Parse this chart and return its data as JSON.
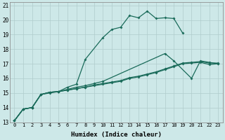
{
  "xlabel": "Humidex (Indice chaleur)",
  "bg_color": "#cde8e8",
  "grid_color": "#b0cccc",
  "line_color": "#1a6b5a",
  "xlim_min": -0.5,
  "xlim_max": 23.5,
  "ylim_min": 13,
  "ylim_max": 21.2,
  "xticks": [
    0,
    1,
    2,
    3,
    4,
    5,
    6,
    7,
    8,
    9,
    10,
    11,
    12,
    13,
    14,
    15,
    16,
    17,
    18,
    19,
    20,
    21,
    22,
    23
  ],
  "yticks": [
    13,
    14,
    15,
    16,
    17,
    18,
    19,
    20,
    21
  ],
  "series": [
    {
      "x": [
        0,
        1,
        2,
        3,
        4,
        5,
        6,
        7,
        8,
        10,
        11,
        12,
        13,
        14,
        15,
        16,
        17,
        18,
        19
      ],
      "y": [
        13.1,
        13.9,
        14.0,
        14.9,
        15.0,
        15.1,
        15.4,
        15.6,
        17.3,
        18.8,
        19.35,
        19.5,
        20.3,
        20.15,
        20.6,
        20.1,
        20.15,
        20.1,
        19.1
      ]
    },
    {
      "x": [
        0,
        1,
        2,
        3,
        4,
        5,
        6,
        7,
        8,
        9,
        10,
        17,
        18,
        20,
        21,
        22,
        23
      ],
      "y": [
        13.1,
        13.9,
        14.0,
        14.9,
        15.05,
        15.1,
        15.25,
        15.4,
        15.5,
        15.65,
        15.8,
        17.7,
        17.2,
        16.0,
        17.2,
        17.1,
        17.0
      ]
    },
    {
      "x": [
        0,
        1,
        2,
        3,
        4,
        5,
        6,
        7,
        8,
        9,
        10,
        11,
        12,
        13,
        14,
        15,
        16,
        17,
        18,
        19,
        20,
        21,
        22,
        23
      ],
      "y": [
        13.1,
        13.9,
        14.0,
        14.9,
        15.05,
        15.1,
        15.2,
        15.3,
        15.4,
        15.5,
        15.6,
        15.7,
        15.8,
        16.0,
        16.1,
        16.25,
        16.4,
        16.6,
        16.8,
        17.0,
        17.05,
        17.1,
        16.95,
        17.0
      ]
    },
    {
      "x": [
        0,
        1,
        2,
        3,
        4,
        5,
        6,
        7,
        8,
        9,
        10,
        11,
        12,
        13,
        14,
        15,
        16,
        17,
        18,
        19,
        20,
        21,
        22,
        23
      ],
      "y": [
        13.1,
        13.9,
        14.0,
        14.9,
        15.05,
        15.1,
        15.2,
        15.3,
        15.4,
        15.55,
        15.65,
        15.75,
        15.85,
        16.05,
        16.15,
        16.3,
        16.45,
        16.65,
        16.85,
        17.05,
        17.1,
        17.15,
        17.05,
        17.05
      ]
    }
  ]
}
